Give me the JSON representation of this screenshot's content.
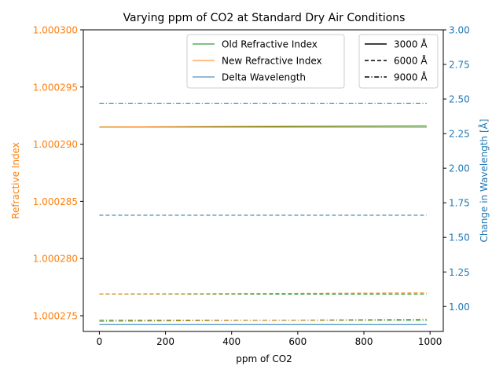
{
  "chart_data": {
    "type": "line",
    "title": "Varying ppm of CO2 at Standard Dry Air Conditions",
    "xlabel": "ppm of CO2",
    "ylabel_left": "Refractive Index",
    "ylabel_right": "Change in Wavelength [Å]",
    "xlim": [
      -48.5,
      1040
    ],
    "ylim_left": [
      1.000273625,
      1.0003
    ],
    "ylim_right": [
      0.82,
      3.0
    ],
    "x_ticks": [
      0,
      200,
      400,
      600,
      800,
      1000
    ],
    "x_tick_labels": [
      "0",
      "200",
      "400",
      "600",
      "800",
      "1000"
    ],
    "y_left_ticks": [
      1.000275,
      1.00028,
      1.000285,
      1.00029,
      1.000295,
      1.0003
    ],
    "y_left_tick_labels": [
      "1.000275",
      "1.000280",
      "1.000285",
      "1.000290",
      "1.000295",
      "1.000300"
    ],
    "y_right_ticks": [
      1.0,
      1.25,
      1.5,
      1.75,
      2.0,
      2.25,
      2.5,
      2.75,
      3.0
    ],
    "y_right_tick_labels": [
      "1.00",
      "1.25",
      "1.50",
      "1.75",
      "2.00",
      "2.25",
      "2.50",
      "2.75",
      "3.00"
    ],
    "colors": {
      "old": "#008000",
      "new": "#ff7f0e",
      "delta": "#1f77b4",
      "left_axis": "#ff7f0e",
      "right_axis": "#1f77b4"
    },
    "x": [
      0,
      990
    ],
    "series": [
      {
        "name": "Old Refractive Index",
        "axis": "left",
        "kind": "old",
        "wavelength": "3000 Å",
        "values": [
          1.0002915,
          1.0002915
        ]
      },
      {
        "name": "Old Refractive Index",
        "axis": "left",
        "kind": "old",
        "wavelength": "6000 Å",
        "values": [
          1.0002769,
          1.0002769
        ]
      },
      {
        "name": "Old Refractive Index",
        "axis": "left",
        "kind": "old",
        "wavelength": "9000 Å",
        "values": [
          1.0002746,
          1.0002746
        ]
      },
      {
        "name": "New Refractive Index",
        "axis": "left",
        "kind": "new",
        "wavelength": "3000 Å",
        "values": [
          1.0002915,
          1.00029165
        ]
      },
      {
        "name": "New Refractive Index",
        "axis": "left",
        "kind": "new",
        "wavelength": "6000 Å",
        "values": [
          1.0002769,
          1.000277
        ]
      },
      {
        "name": "New Refractive Index",
        "axis": "left",
        "kind": "new",
        "wavelength": "9000 Å",
        "values": [
          1.0002745,
          1.0002747
        ]
      },
      {
        "name": "Delta Wavelength",
        "axis": "right",
        "kind": "delta",
        "wavelength": "3000 Å",
        "values": [
          0.87,
          0.87
        ]
      },
      {
        "name": "Delta Wavelength",
        "axis": "right",
        "kind": "delta",
        "wavelength": "6000 Å",
        "values": [
          1.66,
          1.66
        ]
      },
      {
        "name": "Delta Wavelength",
        "axis": "right",
        "kind": "delta",
        "wavelength": "9000 Å",
        "values": [
          2.47,
          2.47
        ]
      }
    ],
    "legend_series": {
      "placement": "upper center",
      "items": [
        {
          "label": "Old Refractive Index",
          "kind": "old"
        },
        {
          "label": "New Refractive Index",
          "kind": "new"
        },
        {
          "label": "Delta Wavelength",
          "kind": "delta"
        }
      ]
    },
    "legend_wavelength": {
      "placement": "upper right",
      "items": [
        {
          "label": "3000 Å",
          "style": "solid"
        },
        {
          "label": "6000 Å",
          "style": "dashed"
        },
        {
          "label": "9000 Å",
          "style": "dashdot"
        }
      ]
    }
  }
}
